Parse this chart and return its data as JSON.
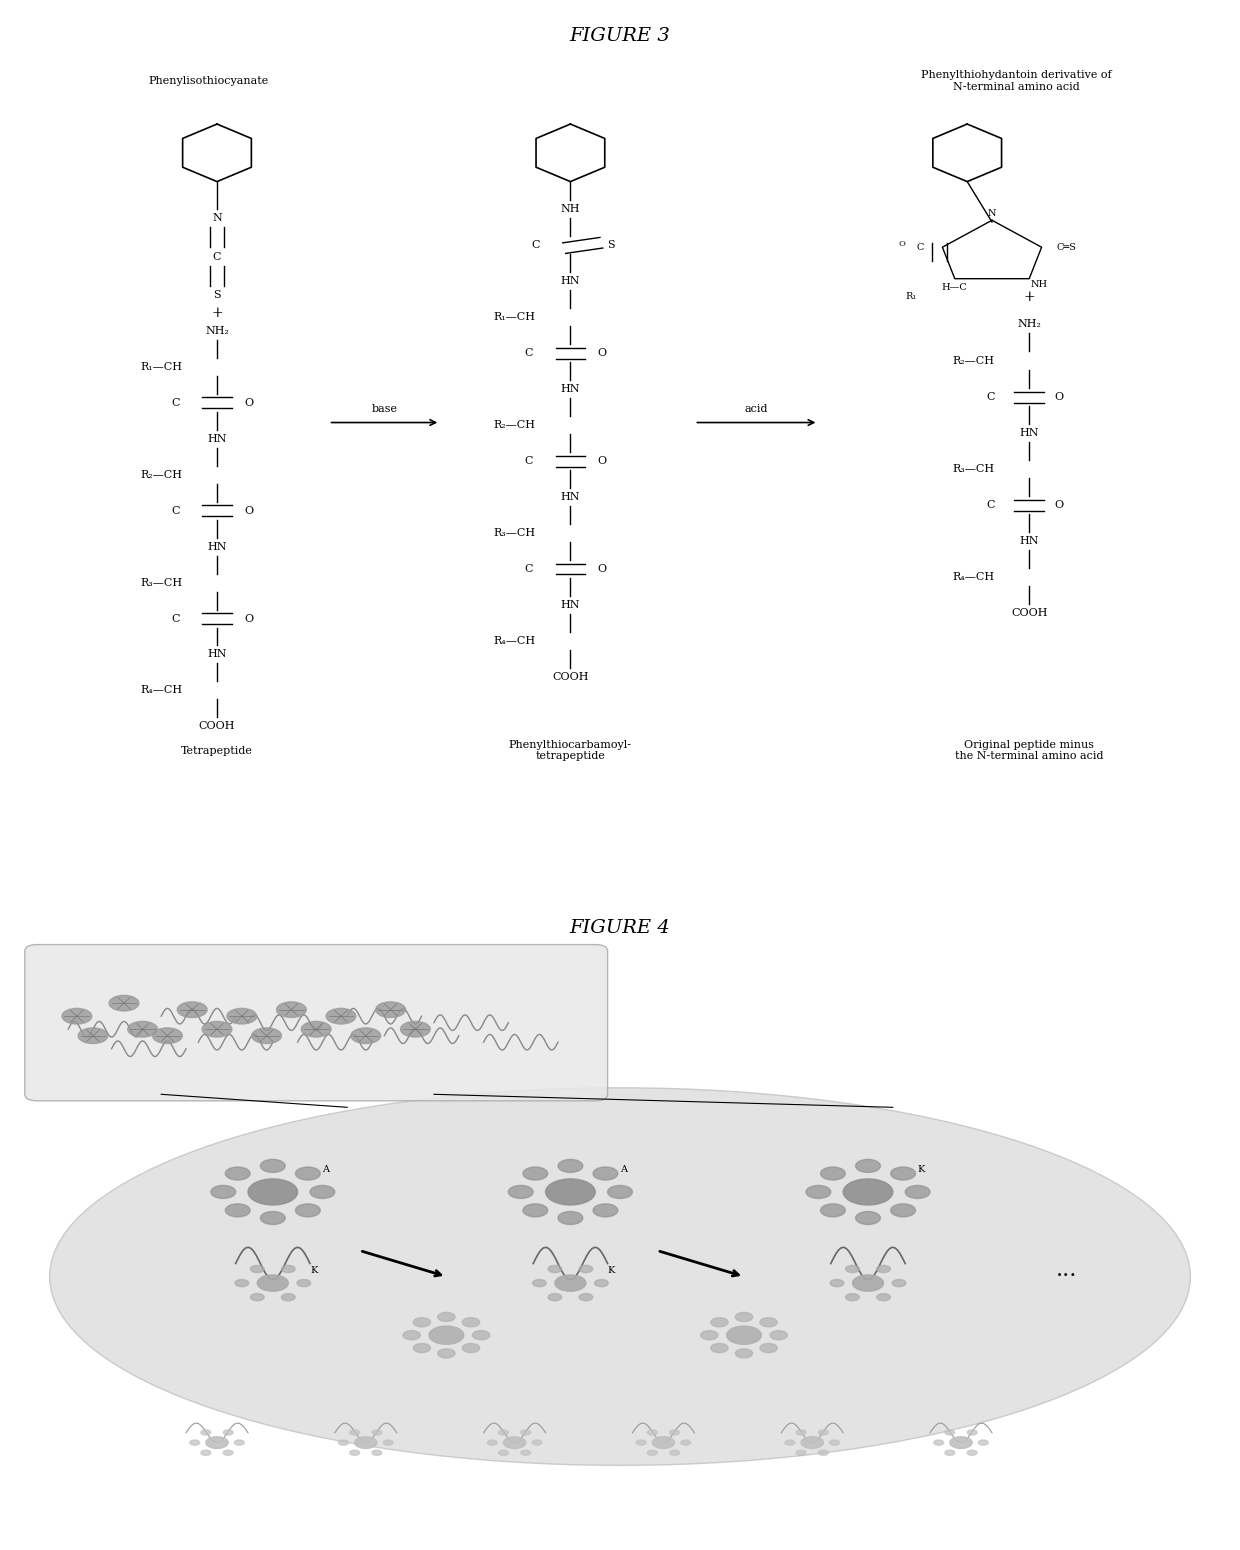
{
  "fig3_title": "FIGURE 3",
  "fig4_title": "FIGURE 4",
  "label_phenylisothiocyanate": "Phenylisothiocyanate",
  "label_phenylthiohydantoin": "Phenylthiohydantoin derivative of\nN-terminal amino acid",
  "label_tetrapeptide": "Tetrapeptide",
  "label_phenylthiocarbamoyl": "Phenylthiocarbamoyl-\ntetrapeptide",
  "label_original": "Original peptide minus\nthe N-terminal amino acid",
  "label_base": "base",
  "label_acid": "acid",
  "bg_color": "#ffffff",
  "text_color": "#000000",
  "fig_width": 12.4,
  "fig_height": 15.5
}
